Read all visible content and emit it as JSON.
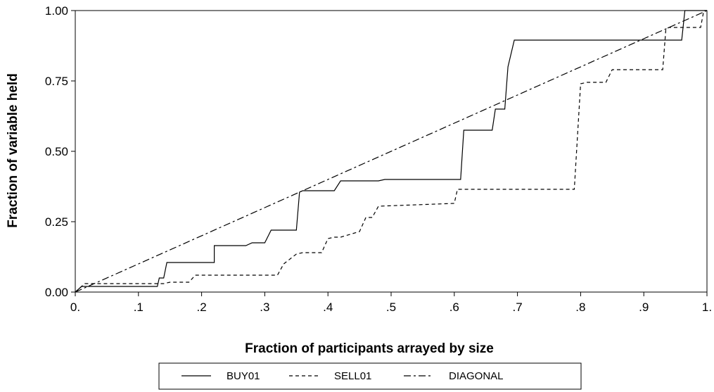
{
  "chart_data": {
    "type": "line",
    "xlabel": "Fraction of participants arrayed by size",
    "ylabel": "Fraction of variable held",
    "xlim": [
      0,
      1
    ],
    "ylim": [
      0,
      1
    ],
    "x_ticks": [
      0,
      0.1,
      0.2,
      0.3,
      0.4,
      0.5,
      0.6,
      0.7,
      0.8,
      0.9,
      1.0
    ],
    "x_tick_labels": [
      "0.",
      ".1",
      ".2",
      ".3",
      ".4",
      ".5",
      ".6",
      ".7",
      ".8",
      ".9",
      "1."
    ],
    "y_ticks": [
      0,
      0.25,
      0.5,
      0.75,
      1.0
    ],
    "y_tick_labels": [
      "0.00",
      "0.25",
      "0.50",
      "0.75",
      "1.00"
    ],
    "grid": false,
    "legend_position": "bottom",
    "series": [
      {
        "name": "BUY01",
        "dash": "solid",
        "x": [
          0,
          0.01,
          0.03,
          0.13,
          0.133,
          0.14,
          0.145,
          0.22,
          0.22,
          0.27,
          0.28,
          0.3,
          0.31,
          0.35,
          0.355,
          0.36,
          0.41,
          0.42,
          0.48,
          0.49,
          0.61,
          0.615,
          0.66,
          0.665,
          0.68,
          0.685,
          0.695,
          0.96,
          0.965,
          1.0
        ],
        "y": [
          0,
          0.02,
          0.02,
          0.02,
          0.05,
          0.05,
          0.105,
          0.105,
          0.165,
          0.165,
          0.175,
          0.175,
          0.22,
          0.22,
          0.355,
          0.36,
          0.36,
          0.395,
          0.395,
          0.4,
          0.4,
          0.575,
          0.575,
          0.65,
          0.65,
          0.8,
          0.895,
          0.895,
          1.0,
          1.0
        ]
      },
      {
        "name": "SELL01",
        "dash": "dashed",
        "x": [
          0,
          0.01,
          0.015,
          0.13,
          0.14,
          0.15,
          0.18,
          0.19,
          0.32,
          0.33,
          0.35,
          0.36,
          0.39,
          0.4,
          0.41,
          0.42,
          0.45,
          0.46,
          0.47,
          0.48,
          0.6,
          0.605,
          0.65,
          0.79,
          0.8,
          0.81,
          0.84,
          0.85,
          0.93,
          0.935,
          0.94,
          0.99,
          0.995,
          1.0
        ],
        "y": [
          0,
          0.02,
          0.03,
          0.03,
          0.03,
          0.035,
          0.035,
          0.06,
          0.06,
          0.1,
          0.135,
          0.14,
          0.14,
          0.19,
          0.195,
          0.195,
          0.215,
          0.265,
          0.265,
          0.305,
          0.315,
          0.365,
          0.365,
          0.365,
          0.74,
          0.745,
          0.745,
          0.79,
          0.79,
          0.935,
          0.94,
          0.94,
          1.0,
          1.0
        ]
      },
      {
        "name": "DIAGONAL",
        "dash": "dashdot",
        "x": [
          0,
          1
        ],
        "y": [
          0,
          1
        ]
      }
    ]
  }
}
